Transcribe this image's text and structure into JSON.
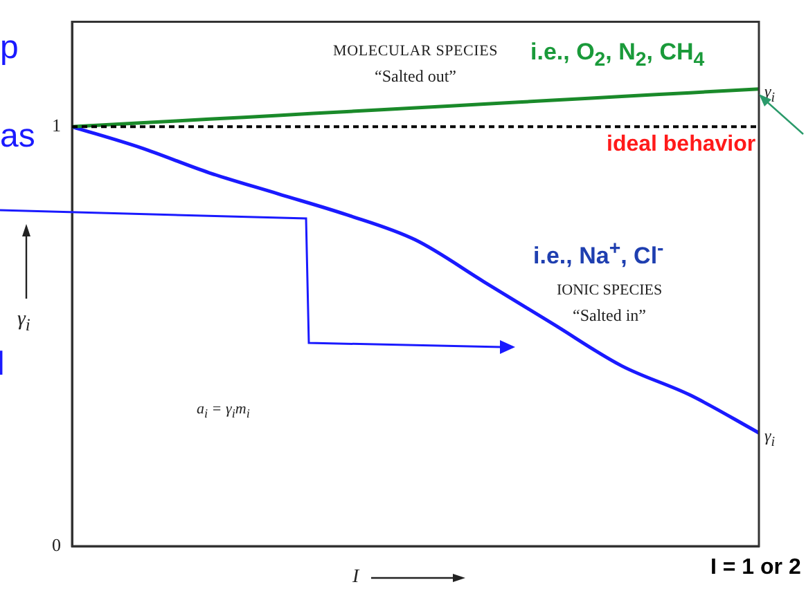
{
  "chart_data": {
    "type": "line",
    "xlabel": "I",
    "ylabel": "γ$_{i}$",
    "categories": [
      null,
      null,
      null,
      null,
      null,
      null,
      null,
      null,
      null,
      null,
      null
    ],
    "series": [
      {
        "name": "γ$_{i}$",
        "color": "#1a8a2a",
        "values": [
          1.0,
          1.009,
          1.018,
          1.027,
          1.036,
          1.045,
          1.054,
          1.063,
          1.072,
          1.081,
          1.09
        ]
      },
      {
        "name": "γ$_{i}$",
        "color": "#1a1aff",
        "values": [
          1.0,
          0.95,
          0.89,
          0.84,
          0.79,
          0.73,
          0.63,
          0.53,
          0.43,
          0.36,
          0.27
        ]
      }
    ],
    "ylim": [
      0,
      1.25
    ],
    "yticks": [
      0,
      1
    ],
    "ref_lines": [
      {
        "axis": "y",
        "value": 1,
        "label": "ideal behavior",
        "color": "#000000",
        "line_style": "dashed"
      }
    ],
    "annotations": [
      "MOLECULAR SPECIES",
      "“Salted out”",
      "i.e., O$_{2}$, N$_{2}$, CH$_{4}$",
      "i.e., Na$^{+}$, Cl$^{-}$",
      "IONIC SPECIES",
      "“Salted in”",
      "a$_{i}$ = γ$_{i}$m$_{i}$",
      "I = 1 or 2",
      "p",
      "as",
      "l"
    ],
    "grid": false,
    "legend": false,
    "marker": "none",
    "line_style": "solid",
    "tick_labels": "y"
  }
}
